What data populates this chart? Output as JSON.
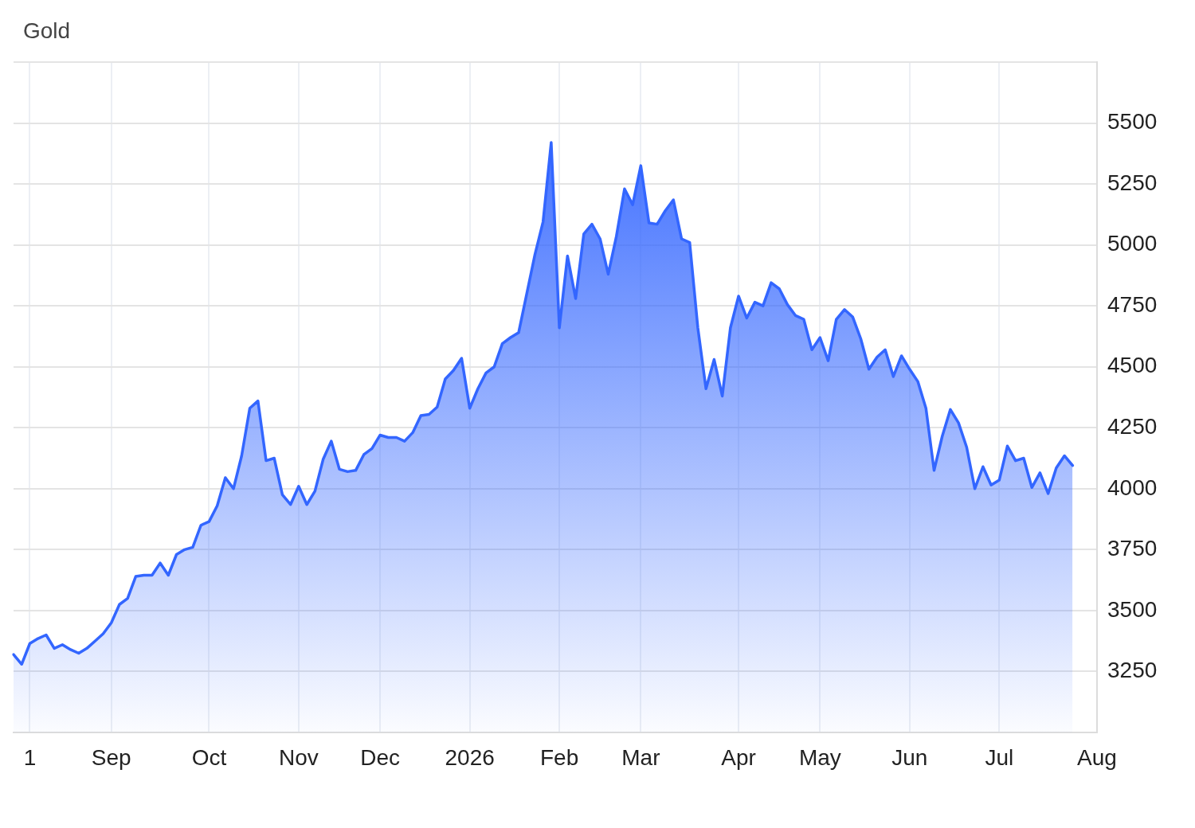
{
  "chart_data": {
    "type": "area",
    "title": "Gold",
    "categories": [
      null,
      null,
      "1",
      null,
      null,
      null,
      null,
      null,
      null,
      null,
      null,
      null,
      "Sep",
      null,
      null,
      null,
      null,
      null,
      null,
      null,
      null,
      null,
      null,
      null,
      "Oct",
      null,
      null,
      null,
      null,
      null,
      null,
      null,
      null,
      null,
      null,
      "Nov",
      null,
      null,
      null,
      null,
      null,
      null,
      null,
      null,
      null,
      "Dec",
      null,
      null,
      null,
      null,
      null,
      null,
      null,
      null,
      null,
      null,
      "2026",
      null,
      null,
      null,
      null,
      null,
      null,
      null,
      null,
      null,
      null,
      "Feb",
      null,
      null,
      null,
      null,
      null,
      null,
      null,
      null,
      null,
      "Mar",
      null,
      null,
      null,
      null,
      null,
      null,
      null,
      null,
      null,
      null,
      null,
      "Apr",
      null,
      null,
      null,
      null,
      null,
      null,
      null,
      null,
      null,
      "May",
      null,
      null,
      null,
      null,
      null,
      null,
      null,
      null,
      null,
      null,
      "Jun",
      null,
      null,
      null,
      null,
      null,
      null,
      null,
      null,
      null,
      null,
      "Jul",
      null,
      null,
      null,
      null,
      null,
      null,
      null,
      null,
      null,
      null,
      null,
      "Aug"
    ],
    "values": [
      3320,
      3280,
      3365,
      3385,
      3400,
      3345,
      3360,
      3340,
      3325,
      3345,
      3375,
      3405,
      3450,
      3525,
      3550,
      3640,
      3645,
      3645,
      3695,
      3645,
      3730,
      3750,
      3760,
      3850,
      3865,
      3930,
      4045,
      4000,
      4135,
      4330,
      4360,
      4115,
      4125,
      3975,
      3935,
      4010,
      3935,
      3990,
      4120,
      4195,
      4080,
      4070,
      4075,
      4140,
      4165,
      4220,
      4210,
      4210,
      4195,
      4230,
      4300,
      4305,
      4335,
      4450,
      4485,
      4535,
      4330,
      4410,
      4475,
      4500,
      4595,
      4620,
      4640,
      4800,
      4960,
      5095,
      5420,
      4660,
      4955,
      4780,
      5045,
      5085,
      5025,
      4880,
      5035,
      5230,
      5165,
      5325,
      5090,
      5085,
      5140,
      5185,
      5025,
      5010,
      4660,
      4410,
      4530,
      4380,
      4660,
      4790,
      4700,
      4765,
      4750,
      4845,
      4820,
      4755,
      4710,
      4695,
      4570,
      4620,
      4525,
      4695,
      4735,
      4705,
      4615,
      4490,
      4540,
      4570,
      4460,
      4545,
      4490,
      4440,
      4330,
      4075,
      4215,
      4325,
      4270,
      4170,
      4000,
      4090,
      4015,
      4035,
      4175,
      4115,
      4125,
      4005,
      4065,
      3980,
      4085,
      4135,
      4095,
      null,
      null,
      null
    ],
    "color": "#3366ff",
    "ylim": [
      3000,
      5750
    ],
    "yticks": [
      {
        "value": 3000,
        "label": null
      },
      3250,
      3500,
      3750,
      4000,
      4250,
      4500,
      4750,
      5000,
      5250,
      5500,
      {
        "value": 5750,
        "label": null
      }
    ],
    "grid": true
  }
}
